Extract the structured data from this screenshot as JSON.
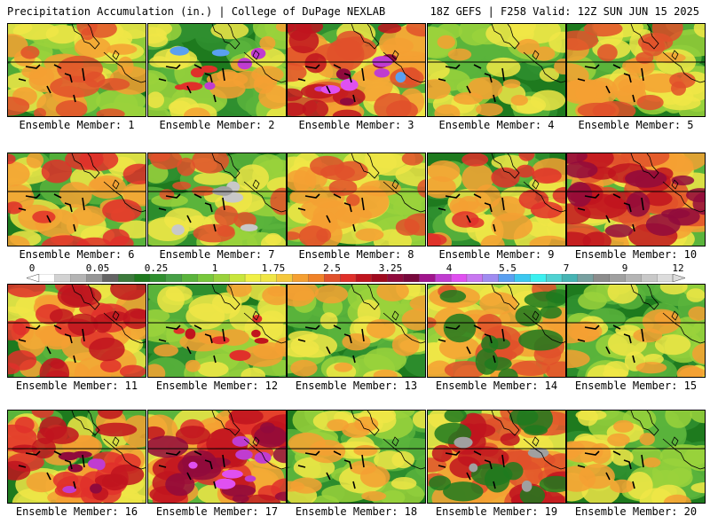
{
  "header": {
    "left": "Precipitation Accumulation (in.) | College of DuPage NEXLAB",
    "right": "18Z GEFS | F258 Valid: 12Z SUN JUN 15 2025"
  },
  "members": [
    {
      "label": "Ensemble Member: 1",
      "palette": [
        "#1e7a1e",
        "#5ab43c",
        "#9ad23c",
        "#f0e646",
        "#f5a032",
        "#e0502a"
      ]
    },
    {
      "label": "Ensemble Member: 2",
      "palette": [
        "#1e7a1e",
        "#2f8f2f",
        "#5ab43c",
        "#9ad23c",
        "#f0e646",
        "#f5a032"
      ],
      "hot": [
        "#e0302a",
        "#c03cd0",
        "#5aa0f0"
      ]
    },
    {
      "label": "Ensemble Member: 3",
      "palette": [
        "#2f8f2f",
        "#5ab43c",
        "#f0e646",
        "#f5a032",
        "#e0502a",
        "#c0141e"
      ],
      "hot": [
        "#900a3c",
        "#c03cd0",
        "#e050f0",
        "#5aa0f0"
      ]
    },
    {
      "label": "Ensemble Member: 4",
      "palette": [
        "#1e7a1e",
        "#2f8f2f",
        "#5ab43c",
        "#9ad23c",
        "#f0e646",
        "#f5a032"
      ]
    },
    {
      "label": "Ensemble Member: 5",
      "palette": [
        "#1e7a1e",
        "#5ab43c",
        "#9ad23c",
        "#f0e646",
        "#f5a032",
        "#e0502a"
      ]
    },
    {
      "label": "Ensemble Member: 6",
      "palette": [
        "#1e7a1e",
        "#2f8f2f",
        "#5ab43c",
        "#f0e646",
        "#f5a032",
        "#e0302a"
      ]
    },
    {
      "label": "Ensemble Member: 7",
      "palette": [
        "#1e7a1e",
        "#2f8f2f",
        "#5ab43c",
        "#9ad23c",
        "#f0e646",
        "#e0502a"
      ],
      "hot": [
        "#c8c8c8",
        "#a0a0a0"
      ]
    },
    {
      "label": "Ensemble Member: 8",
      "palette": [
        "#1e7a1e",
        "#5ab43c",
        "#9ad23c",
        "#f0e646",
        "#f5a032",
        "#e0502a"
      ]
    },
    {
      "label": "Ensemble Member: 9",
      "palette": [
        "#1e7a1e",
        "#2f8f2f",
        "#5ab43c",
        "#f0e646",
        "#f5a032",
        "#e0302a"
      ]
    },
    {
      "label": "Ensemble Member: 10",
      "palette": [
        "#5ab43c",
        "#f0e646",
        "#f5a032",
        "#e0502a",
        "#c0141e",
        "#900a3c"
      ]
    },
    {
      "label": "Ensemble Member: 11",
      "palette": [
        "#1e7a1e",
        "#5ab43c",
        "#f0e646",
        "#f5a032",
        "#e0302a",
        "#c0141e"
      ]
    },
    {
      "label": "Ensemble Member: 12",
      "palette": [
        "#1e7a1e",
        "#2f8f2f",
        "#5ab43c",
        "#9ad23c",
        "#f0e646",
        "#f5a032"
      ],
      "hot": [
        "#e0302a",
        "#c0141e"
      ]
    },
    {
      "label": "Ensemble Member: 13",
      "palette": [
        "#1e7a1e",
        "#2f8f2f",
        "#5ab43c",
        "#9ad23c",
        "#f0e646",
        "#f5a032"
      ]
    },
    {
      "label": "Ensemble Member: 14",
      "palette": [
        "#5ab43c",
        "#9ad23c",
        "#f0e646",
        "#f5a032",
        "#e0502a",
        "#1e7a1e"
      ]
    },
    {
      "label": "Ensemble Member: 15",
      "palette": [
        "#1e7a1e",
        "#2f8f2f",
        "#5ab43c",
        "#9ad23c",
        "#f0e646",
        "#f5a032"
      ]
    },
    {
      "label": "Ensemble Member: 16",
      "palette": [
        "#1e7a1e",
        "#5ab43c",
        "#f0e646",
        "#f5a032",
        "#e0302a",
        "#c0141e"
      ],
      "hot": [
        "#900a3c",
        "#c03cd0"
      ]
    },
    {
      "label": "Ensemble Member: 17",
      "palette": [
        "#5ab43c",
        "#f0e646",
        "#f5a032",
        "#e0302a",
        "#c0141e",
        "#900a3c"
      ],
      "hot": [
        "#c03cd0",
        "#e050f0"
      ]
    },
    {
      "label": "Ensemble Member: 18",
      "palette": [
        "#1e7a1e",
        "#2f8f2f",
        "#5ab43c",
        "#9ad23c",
        "#f0e646",
        "#f5a032"
      ]
    },
    {
      "label": "Ensemble Member: 19",
      "palette": [
        "#5ab43c",
        "#f0e646",
        "#f5a032",
        "#e0502a",
        "#c0141e",
        "#1e7a1e"
      ],
      "hot": [
        "#a0a0a0"
      ]
    },
    {
      "label": "Ensemble Member: 20",
      "palette": [
        "#1e7a1e",
        "#2f8f2f",
        "#5ab43c",
        "#9ad23c",
        "#f0e646",
        "#f5a032"
      ]
    }
  ],
  "colorbar": {
    "labels": [
      "0",
      "0.05",
      "0.25",
      "1",
      "1.75",
      "2.5",
      "3.25",
      "4",
      "5.5",
      "7",
      "9",
      "12"
    ],
    "colors": [
      "#ffffff",
      "#d2d2d2",
      "#b4b4b4",
      "#969696",
      "#646464",
      "#3c7a3c",
      "#1e7a1e",
      "#2f8f2f",
      "#46a046",
      "#5ab43c",
      "#78c83c",
      "#9ad23c",
      "#c8e63c",
      "#f0f046",
      "#f0e646",
      "#f5c83c",
      "#f5a032",
      "#f08228",
      "#e0502a",
      "#e0302a",
      "#c0141e",
      "#a00a1e",
      "#900a3c",
      "#78083c",
      "#a0148c",
      "#c03cd0",
      "#e050f0",
      "#c878f0",
      "#a08cf0",
      "#5aa0f0",
      "#3cc8f0",
      "#3cf0f0",
      "#50d2d2",
      "#46b4b4",
      "#78a0a0",
      "#8c8c8c",
      "#a0a0a0",
      "#b4b4b4",
      "#c8c8c8",
      "#dcdcdc"
    ]
  }
}
